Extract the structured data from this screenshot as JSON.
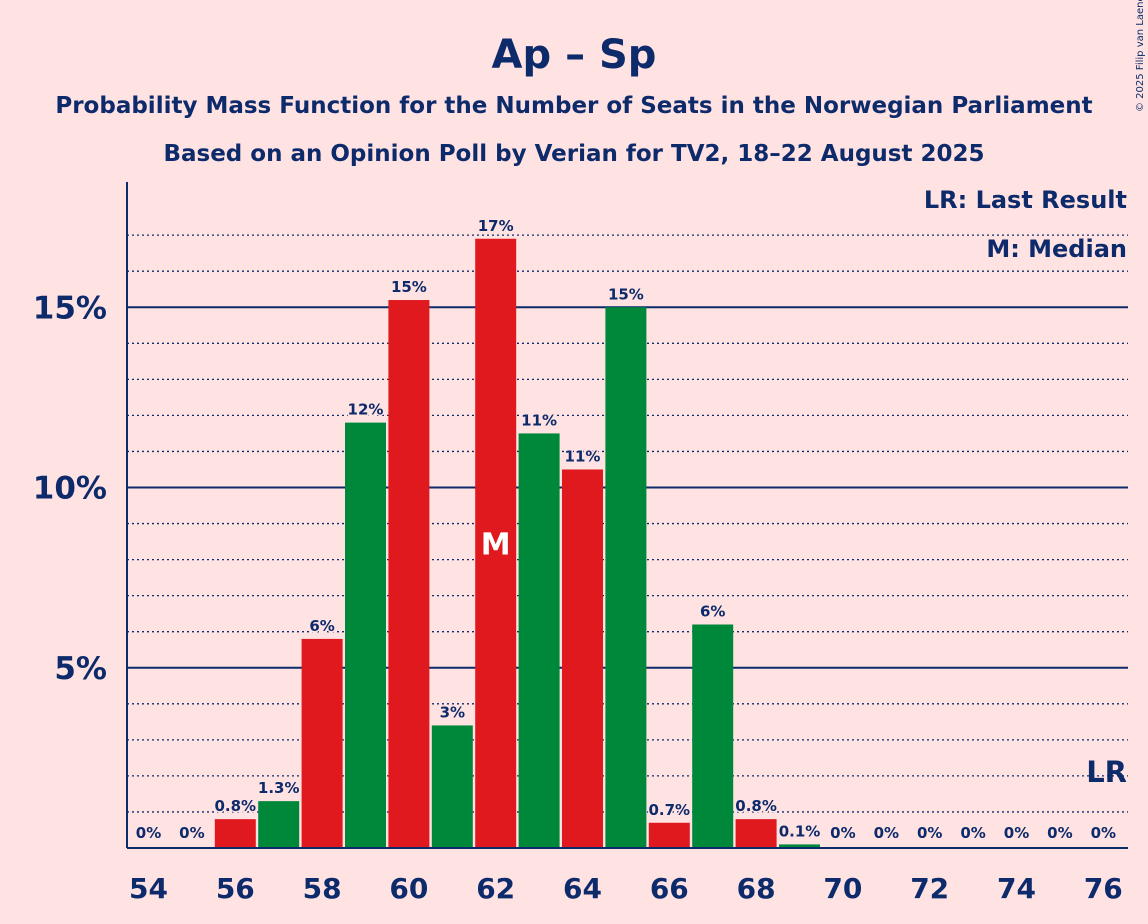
{
  "chart_data": {
    "type": "bar",
    "title": "Ap – Sp",
    "subtitle_1": "Probability Mass Function for the Number of Seats in the Norwegian Parliament",
    "subtitle_2": "Based on an Opinion Poll by Verian for TV2, 18–22 August 2025",
    "copyright": "© 2025 Filip van Laenen",
    "xlabel": "",
    "ylabel": "",
    "ylim": [
      0,
      18.5
    ],
    "xlim": [
      54,
      76
    ],
    "yticks": [
      {
        "value": 5,
        "label": "5%"
      },
      {
        "value": 10,
        "label": "10%"
      },
      {
        "value": 15,
        "label": "15%"
      }
    ],
    "xticks": [
      {
        "value": 54,
        "label": "54"
      },
      {
        "value": 56,
        "label": "56"
      },
      {
        "value": 58,
        "label": "58"
      },
      {
        "value": 60,
        "label": "60"
      },
      {
        "value": 62,
        "label": "62"
      },
      {
        "value": 64,
        "label": "64"
      },
      {
        "value": 66,
        "label": "66"
      },
      {
        "value": 68,
        "label": "68"
      },
      {
        "value": 70,
        "label": "70"
      },
      {
        "value": 72,
        "label": "72"
      },
      {
        "value": 74,
        "label": "74"
      },
      {
        "value": 76,
        "label": "76"
      }
    ],
    "bars": [
      {
        "seats": 54,
        "value": 0,
        "label": "0%",
        "color": "#e0191f"
      },
      {
        "seats": 55,
        "value": 0,
        "label": "0%",
        "color": "#00883a"
      },
      {
        "seats": 56,
        "value": 0.8,
        "label": "0.8%",
        "color": "#e0191f"
      },
      {
        "seats": 57,
        "value": 1.3,
        "label": "1.3%",
        "color": "#00883a"
      },
      {
        "seats": 58,
        "value": 5.8,
        "label": "6%",
        "color": "#e0191f"
      },
      {
        "seats": 59,
        "value": 11.8,
        "label": "12%",
        "color": "#00883a"
      },
      {
        "seats": 60,
        "value": 15.2,
        "label": "15%",
        "color": "#e0191f"
      },
      {
        "seats": 61,
        "value": 3.4,
        "label": "3%",
        "color": "#00883a"
      },
      {
        "seats": 62,
        "value": 16.9,
        "label": "17%",
        "color": "#e0191f"
      },
      {
        "seats": 63,
        "value": 11.5,
        "label": "11%",
        "color": "#00883a"
      },
      {
        "seats": 64,
        "value": 10.5,
        "label": "11%",
        "color": "#e0191f"
      },
      {
        "seats": 65,
        "value": 15.0,
        "label": "15%",
        "color": "#00883a"
      },
      {
        "seats": 66,
        "value": 0.7,
        "label": "0.7%",
        "color": "#e0191f"
      },
      {
        "seats": 67,
        "value": 6.2,
        "label": "6%",
        "color": "#00883a"
      },
      {
        "seats": 68,
        "value": 0.8,
        "label": "0.8%",
        "color": "#e0191f"
      },
      {
        "seats": 69,
        "value": 0.1,
        "label": "0.1%",
        "color": "#00883a"
      },
      {
        "seats": 70,
        "value": 0,
        "label": "0%",
        "color": "#e0191f"
      },
      {
        "seats": 71,
        "value": 0,
        "label": "0%",
        "color": "#00883a"
      },
      {
        "seats": 72,
        "value": 0,
        "label": "0%",
        "color": "#e0191f"
      },
      {
        "seats": 73,
        "value": 0,
        "label": "0%",
        "color": "#00883a"
      },
      {
        "seats": 74,
        "value": 0,
        "label": "0%",
        "color": "#e0191f"
      },
      {
        "seats": 75,
        "value": 0,
        "label": "0%",
        "color": "#00883a"
      },
      {
        "seats": 76,
        "value": 0,
        "label": "0%",
        "color": "#e0191f"
      }
    ],
    "median": {
      "seats": 62,
      "marker": "M"
    },
    "last_result": {
      "seats": 76,
      "marker": "LR"
    },
    "legend": {
      "placement": "top-right",
      "items": [
        "LR: Last Result",
        "M: Median"
      ]
    },
    "grid": true
  },
  "colors": {
    "background": "#ffe3e3",
    "text": "#0d2a6b",
    "ap": "#e0191f",
    "sp": "#00883a"
  }
}
